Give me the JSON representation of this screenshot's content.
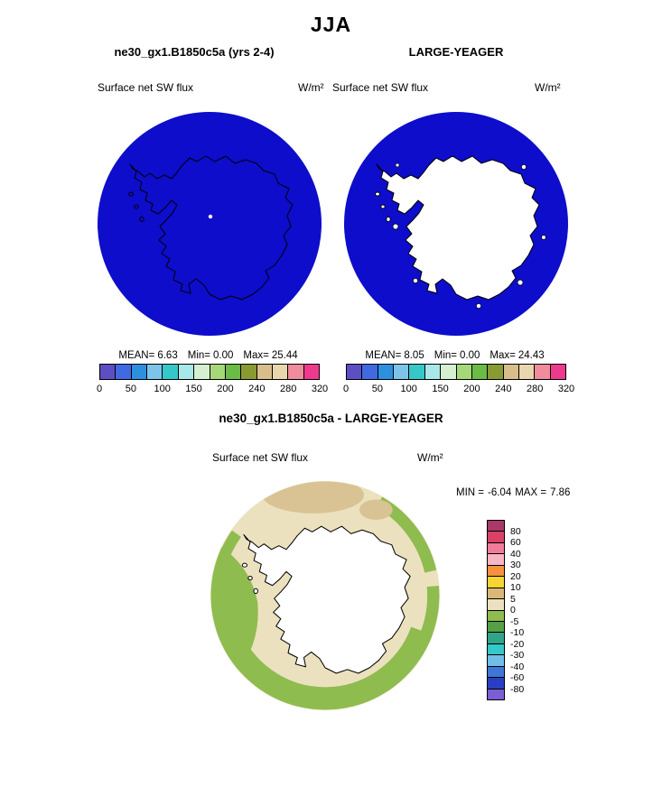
{
  "title": "JJA",
  "panels": [
    {
      "title": "ne30_gx1.B1850c5a (yrs 2-4)",
      "field": "Surface net SW flux",
      "units": "W/m²",
      "stats": {
        "mean_label": "MEAN=",
        "mean": "6.63",
        "min_label": "Min=",
        "min": "0.00",
        "max_label": "Max=",
        "max": "25.44"
      }
    },
    {
      "title": "LARGE-YEAGER",
      "field": "Surface net SW flux",
      "units": "W/m²",
      "stats": {
        "mean_label": "MEAN=",
        "mean": "8.05",
        "min_label": "Min=",
        "min": "0.00",
        "max_label": "Max=",
        "max": "24.43"
      }
    }
  ],
  "flux_colorbar": {
    "tick_labels": [
      "0",
      "50",
      "100",
      "150",
      "200",
      "240",
      "280",
      "320"
    ],
    "colors": [
      "#5C4FC4",
      "#4169E1",
      "#2D8FE0",
      "#7EC4EA",
      "#35C8C8",
      "#A8E8E8",
      "#D6EFD0",
      "#A6D87A",
      "#6BBB47",
      "#8A9A32",
      "#D9BE8C",
      "#EAD6AE",
      "#F08C9C",
      "#EE3A8C"
    ]
  },
  "diff": {
    "title": "ne30_gx1.B1850c5a - LARGE-YEAGER",
    "field": "Surface net SW flux",
    "units": "W/m²",
    "min_label": "MIN =",
    "min": "-6.04",
    "max_label": "MAX =",
    "max": "7.86"
  },
  "diff_colorbar": {
    "tick_labels": [
      "80",
      "60",
      "40",
      "30",
      "20",
      "10",
      "5",
      "0",
      "-5",
      "-10",
      "-20",
      "-30",
      "-40",
      "-60",
      "-80"
    ],
    "colors": [
      "#A83A66",
      "#D94169",
      "#F07C9A",
      "#F7B6C2",
      "#F5923E",
      "#F7D433",
      "#D9B778",
      "#ECE1BE",
      "#8FBC4F",
      "#55A046",
      "#2FA489",
      "#35C8C8",
      "#72BEE8",
      "#3C78D8",
      "#2840C0",
      "#7A5ED2"
    ]
  },
  "map_colors": {
    "ocean": "#0D0DCB",
    "land_model": "#0D0DCB",
    "land_obs": "#FFFFFF",
    "outline": "#000000",
    "diff_background": "#ECE1BE",
    "diff_negative": "#8FBC4F",
    "diff_positive": "#D9C394",
    "pole_dot": "#FFFFFF",
    "ice": "#FFFFFF"
  },
  "chart_data": {
    "type": "map",
    "season": "JJA",
    "variable": "Surface net SW flux",
    "units": "W/m^2",
    "projection": "south polar stereographic",
    "panels": [
      {
        "title": "ne30_gx1.B1850c5a (yrs 2-4)",
        "mean": 6.63,
        "min": 0.0,
        "max": 25.44
      },
      {
        "title": "LARGE-YEAGER",
        "mean": 8.05,
        "min": 0.0,
        "max": 24.43
      }
    ],
    "flux_colorbar_ticks": [
      0,
      50,
      100,
      150,
      200,
      240,
      280,
      320
    ],
    "flux_colorbar_segments": 14,
    "difference": {
      "title": "ne30_gx1.B1850c5a - LARGE-YEAGER",
      "min": -6.04,
      "max": 7.86,
      "colorbar_ticks": [
        80,
        60,
        40,
        30,
        20,
        10,
        5,
        0,
        -5,
        -10,
        -20,
        -30,
        -40,
        -60,
        -80
      ],
      "colorbar_segments": 16
    },
    "legend_position": "horizontal below each top panel; vertical right of difference panel",
    "notes": "Top two disks: ocean shaded deep blue, Antarctica outlined (left filled like ocean, right filled white). Bottom disk: difference field mostly +0-5 (beige) with negative (green) patches around periphery and +5-10 (dark tan) patches at top; Antarctica white."
  }
}
